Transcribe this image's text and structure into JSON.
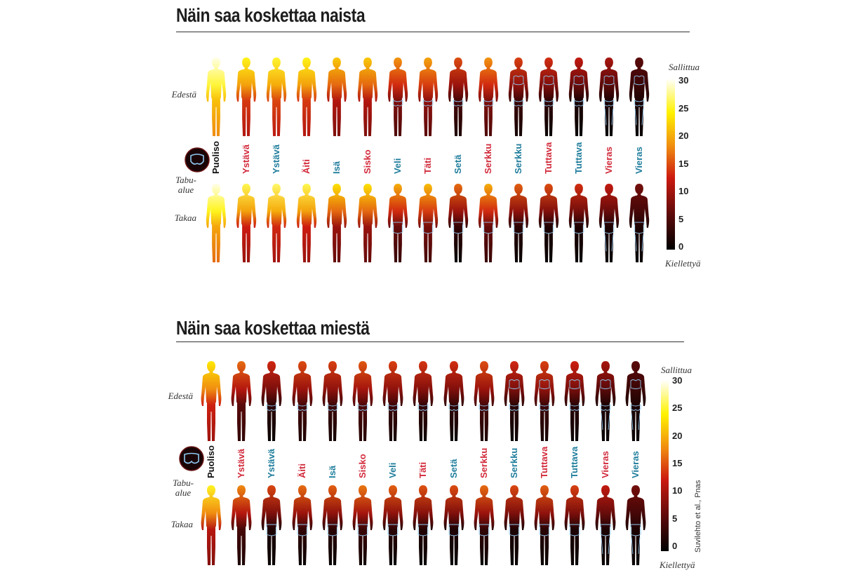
{
  "panels": [
    {
      "id": "women",
      "title": "Näin saa koskettaa naista",
      "front_label": "Edestä",
      "back_label": "Takaa",
      "taboo_label": "Tabu-alue",
      "colorbar": {
        "top_label": "Sallittua",
        "bottom_label": "Kiellettyä",
        "ticks": [
          "30",
          "25",
          "20",
          "15",
          "10",
          "5",
          "0"
        ]
      },
      "relations": [
        {
          "label": "Puoliso",
          "color": "black"
        },
        {
          "label": "Ystävä",
          "color": "red"
        },
        {
          "label": "Ystävä",
          "color": "blue"
        },
        {
          "label": "Äiti",
          "color": "red"
        },
        {
          "label": "Isä",
          "color": "blue"
        },
        {
          "label": "Sisko",
          "color": "red"
        },
        {
          "label": "Veli",
          "color": "blue"
        },
        {
          "label": "Täti",
          "color": "red"
        },
        {
          "label": "Setä",
          "color": "blue"
        },
        {
          "label": "Serkku",
          "color": "red"
        },
        {
          "label": "Serkku",
          "color": "blue"
        },
        {
          "label": "Tuttava",
          "color": "red"
        },
        {
          "label": "Tuttava",
          "color": "blue"
        },
        {
          "label": "Vieras",
          "color": "red"
        },
        {
          "label": "Vieras",
          "color": "blue"
        }
      ]
    },
    {
      "id": "men",
      "title": "Näin saa koskettaa miestä",
      "front_label": "Edestä",
      "back_label": "Takaa",
      "taboo_label": "Tabu-alue",
      "colorbar": {
        "top_label": "Sallittua",
        "bottom_label": "Kiellettyä",
        "ticks": [
          "30",
          "25",
          "20",
          "15",
          "10",
          "5",
          "0"
        ]
      },
      "relations": [
        {
          "label": "Puoliso",
          "color": "black"
        },
        {
          "label": "Ystävä",
          "color": "red"
        },
        {
          "label": "Ystävä",
          "color": "blue"
        },
        {
          "label": "Äiti",
          "color": "red"
        },
        {
          "label": "Isä",
          "color": "blue"
        },
        {
          "label": "Sisko",
          "color": "red"
        },
        {
          "label": "Veli",
          "color": "blue"
        },
        {
          "label": "Täti",
          "color": "red"
        },
        {
          "label": "Setä",
          "color": "blue"
        },
        {
          "label": "Serkku",
          "color": "red"
        },
        {
          "label": "Serkku",
          "color": "blue"
        },
        {
          "label": "Tuttava",
          "color": "red"
        },
        {
          "label": "Tuttava",
          "color": "blue"
        },
        {
          "label": "Vieras",
          "color": "red"
        },
        {
          "label": "Vieras",
          "color": "blue"
        }
      ],
      "source": "Suvilehto et al., Pnas"
    }
  ],
  "colors": {
    "label_red": "#d22a3b",
    "label_blue": "#1f7d9c",
    "label_black": "#111111",
    "taboo_outline": "#8ec8ef"
  }
}
